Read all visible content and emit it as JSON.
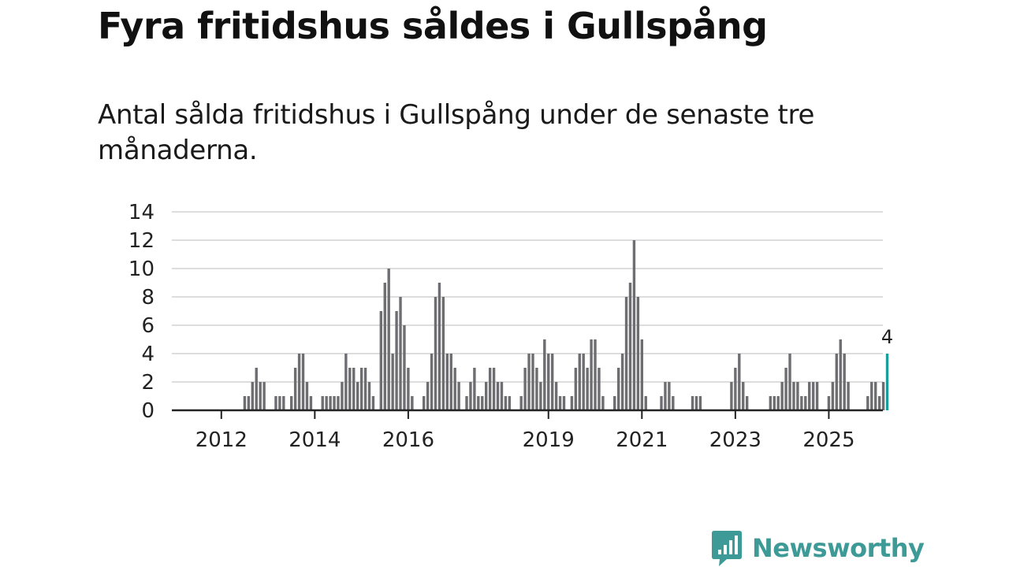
{
  "title": "Fyra fritidshus såldes i Gullspång",
  "subtitle": "Antal sålda fritidshus i Gullspång under de senaste tre månaderna.",
  "brand": "Newsworthy",
  "colors": {
    "bar": "#6e6e72",
    "highlight": "#1a9e9a",
    "grid": "#dddddd",
    "axis": "#222222",
    "brand": "#3d9a97"
  },
  "chart_data": {
    "type": "bar",
    "title": "Fyra fritidshus såldes i Gullspång",
    "subtitle": "Antal sålda fritidshus i Gullspång under de senaste tre månaderna.",
    "xlabel": "",
    "ylabel": "",
    "ylim": [
      0,
      14
    ],
    "yticks": [
      0,
      2,
      4,
      6,
      8,
      10,
      12,
      14
    ],
    "xticks": [
      "2012",
      "2014",
      "2016",
      "2019",
      "2021",
      "2023",
      "2025"
    ],
    "grid": true,
    "start_period": "2011-01",
    "interval": "month",
    "values": [
      0,
      0,
      0,
      0,
      0,
      0,
      0,
      0,
      0,
      0,
      0,
      0,
      0,
      0,
      0,
      0,
      0,
      0,
      1,
      1,
      2,
      3,
      2,
      2,
      0,
      0,
      1,
      1,
      1,
      0,
      1,
      3,
      4,
      4,
      2,
      1,
      0,
      0,
      1,
      1,
      1,
      1,
      1,
      2,
      4,
      3,
      3,
      2,
      3,
      3,
      2,
      1,
      0,
      7,
      9,
      10,
      4,
      7,
      8,
      6,
      3,
      1,
      0,
      0,
      1,
      2,
      4,
      8,
      9,
      8,
      4,
      4,
      3,
      2,
      0,
      1,
      2,
      3,
      1,
      1,
      2,
      3,
      3,
      2,
      2,
      1,
      1,
      0,
      0,
      1,
      3,
      4,
      4,
      3,
      2,
      5,
      4,
      4,
      2,
      1,
      1,
      0,
      1,
      3,
      4,
      4,
      3,
      5,
      5,
      3,
      1,
      0,
      0,
      1,
      3,
      4,
      8,
      9,
      12,
      8,
      5,
      1,
      0,
      0,
      0,
      1,
      2,
      2,
      1,
      0,
      0,
      0,
      0,
      1,
      1,
      1,
      0,
      0,
      0,
      0,
      0,
      0,
      0,
      2,
      3,
      4,
      2,
      1,
      0,
      0,
      0,
      0,
      0,
      1,
      1,
      1,
      2,
      3,
      4,
      2,
      2,
      1,
      1,
      2,
      2,
      2,
      0,
      0,
      1,
      2,
      4,
      5,
      4,
      2,
      0,
      0,
      0,
      0,
      1,
      2,
      2,
      1,
      2,
      4
    ],
    "highlight_last": true,
    "last_value_label": "4"
  }
}
